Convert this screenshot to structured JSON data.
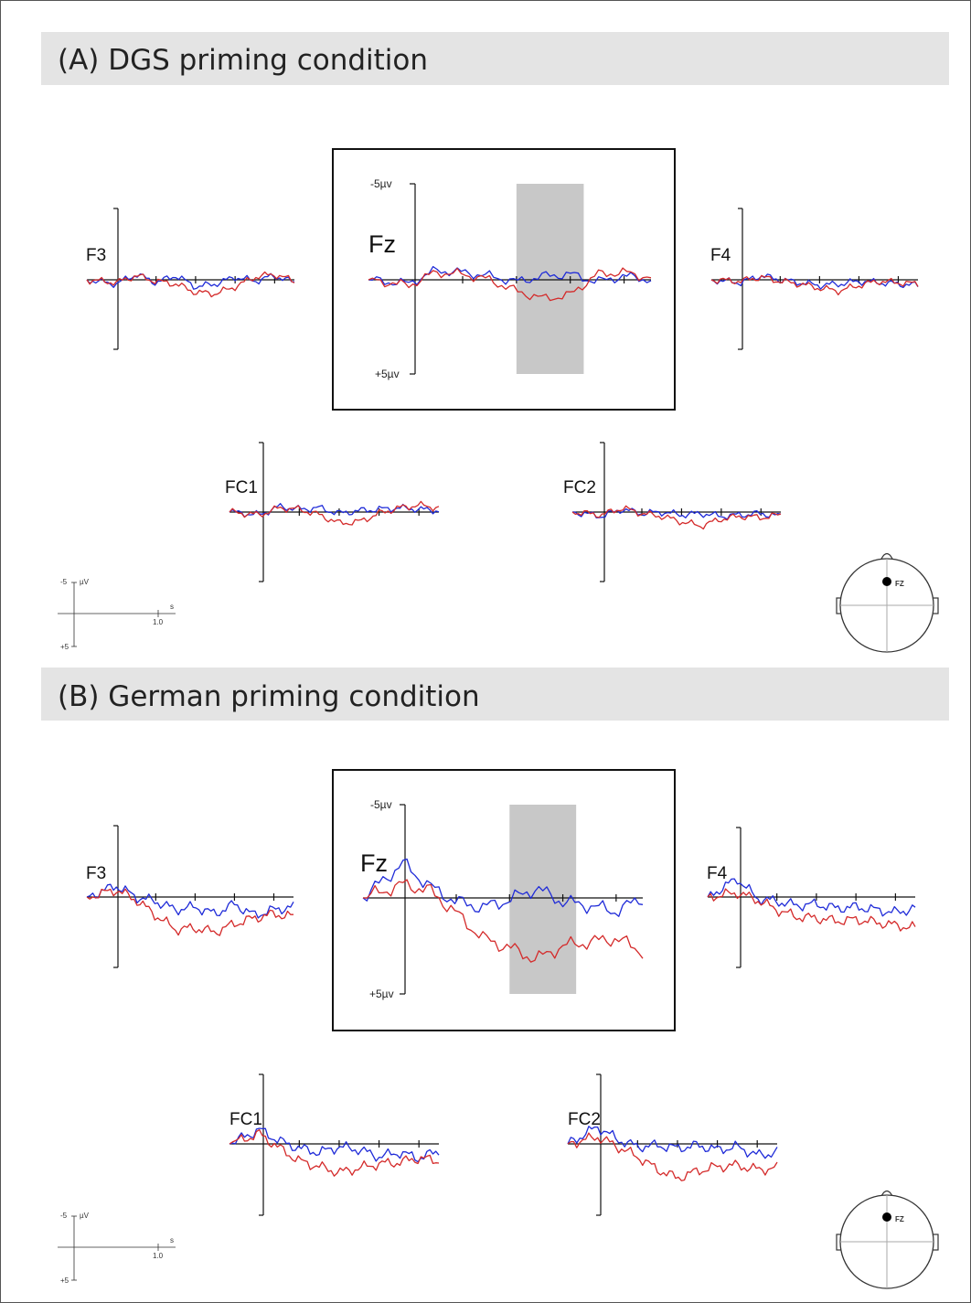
{
  "colors": {
    "condition_1": "#1f2bd8",
    "condition_2": "#d42a2a",
    "title_bar": "#e4e4e4",
    "window": "#c8c8c8"
  },
  "chart_data": [
    {
      "type": "line",
      "panel": "A",
      "title": "(A) DGS priming condition",
      "y_axis": {
        "top": "-5µv",
        "bottom": "+5µv",
        "negative_up": true
      },
      "scale_legend": {
        "top": "-5",
        "unit": "µV",
        "bottom": "+5",
        "x_unit": "s",
        "x_tick": "1.0"
      },
      "head_map_label": "FZ",
      "highlight_window_s": [
        0.4,
        0.65
      ],
      "channels": [
        {
          "name": "F3",
          "series": [
            {
              "color_key": "condition_1",
              "t": [
                -0.15,
                0,
                0.1,
                0.2,
                0.3,
                0.4,
                0.5,
                0.6,
                0.7,
                0.8,
                0.9
              ],
              "uv": [
                0,
                0.3,
                -0.4,
                0.2,
                -0.3,
                0.5,
                0.3,
                -0.2,
                0.1,
                -0.3,
                0.2
              ]
            },
            {
              "color_key": "condition_2",
              "t": [
                -0.15,
                0,
                0.1,
                0.2,
                0.3,
                0.4,
                0.5,
                0.6,
                0.7,
                0.8,
                0.9
              ],
              "uv": [
                0,
                0.2,
                -0.3,
                0.1,
                0.3,
                0.9,
                1.0,
                0.5,
                -0.2,
                -0.4,
                0.1
              ]
            }
          ]
        },
        {
          "name": "Fz",
          "series": [
            {
              "color_key": "condition_1",
              "t": [
                -0.15,
                0,
                0.1,
                0.2,
                0.3,
                0.4,
                0.5,
                0.6,
                0.7,
                0.8,
                0.9
              ],
              "uv": [
                0,
                0.2,
                -0.5,
                -0.4,
                -0.2,
                0.1,
                -0.2,
                -0.3,
                0.1,
                -0.2,
                0.0
              ]
            },
            {
              "color_key": "condition_2",
              "t": [
                -0.15,
                0,
                0.1,
                0.2,
                0.3,
                0.4,
                0.5,
                0.6,
                0.7,
                0.8,
                0.9
              ],
              "uv": [
                0,
                0.3,
                -0.4,
                -0.3,
                0.0,
                0.6,
                1.0,
                0.8,
                -0.3,
                -0.4,
                -0.1
              ]
            }
          ]
        },
        {
          "name": "F4",
          "series": [
            {
              "color_key": "condition_1",
              "t": [
                -0.15,
                0,
                0.1,
                0.2,
                0.3,
                0.4,
                0.5,
                0.6,
                0.7,
                0.8,
                0.9
              ],
              "uv": [
                0,
                0.2,
                -0.3,
                0.0,
                0.2,
                0.4,
                0.3,
                0.1,
                0.2,
                0.3,
                0.4
              ]
            },
            {
              "color_key": "condition_2",
              "t": [
                -0.15,
                0,
                0.1,
                0.2,
                0.3,
                0.4,
                0.5,
                0.6,
                0.7,
                0.8,
                0.9
              ],
              "uv": [
                0,
                0.1,
                -0.2,
                0.1,
                0.3,
                0.6,
                0.8,
                0.4,
                0.1,
                0.2,
                0.3
              ]
            }
          ]
        },
        {
          "name": "FC1",
          "series": [
            {
              "color_key": "condition_1",
              "t": [
                -0.15,
                0,
                0.1,
                0.2,
                0.3,
                0.4,
                0.5,
                0.6,
                0.7,
                0.8,
                0.9
              ],
              "uv": [
                0,
                0.2,
                -0.4,
                -0.2,
                -0.3,
                0.1,
                -0.1,
                -0.2,
                -0.3,
                -0.2,
                -0.1
              ]
            },
            {
              "color_key": "condition_2",
              "t": [
                -0.15,
                0,
                0.1,
                0.2,
                0.3,
                0.4,
                0.5,
                0.6,
                0.7,
                0.8,
                0.9
              ],
              "uv": [
                0,
                0.2,
                -0.3,
                -0.2,
                0.2,
                0.8,
                0.7,
                0.1,
                -0.3,
                -0.5,
                -0.3
              ]
            }
          ]
        },
        {
          "name": "FC2",
          "series": [
            {
              "color_key": "condition_1",
              "t": [
                -0.15,
                0,
                0.1,
                0.2,
                0.3,
                0.4,
                0.5,
                0.6,
                0.7,
                0.8,
                0.9
              ],
              "uv": [
                0,
                0.3,
                -0.2,
                0.1,
                0.0,
                0.2,
                0.1,
                0.3,
                0.2,
                0.1,
                0.3
              ]
            },
            {
              "color_key": "condition_2",
              "t": [
                -0.15,
                0,
                0.1,
                0.2,
                0.3,
                0.4,
                0.5,
                0.6,
                0.7,
                0.8,
                0.9
              ],
              "uv": [
                0,
                0.2,
                -0.3,
                0.1,
                0.3,
                0.7,
                1.0,
                0.5,
                0.3,
                0.4,
                0.2
              ]
            }
          ]
        }
      ]
    },
    {
      "type": "line",
      "panel": "B",
      "title": "(B) German priming condition",
      "y_axis": {
        "top": "-5µv",
        "bottom": "+5µv",
        "negative_up": true
      },
      "scale_legend": {
        "top": "-5",
        "unit": "µV",
        "bottom": "+5",
        "x_unit": "s",
        "x_tick": "1.0"
      },
      "head_map_label": "FZ",
      "highlight_window_s": [
        0.4,
        0.65
      ],
      "channels": [
        {
          "name": "F3",
          "series": [
            {
              "color_key": "condition_1",
              "t": [
                -0.15,
                0,
                0.1,
                0.2,
                0.3,
                0.4,
                0.5,
                0.6,
                0.7,
                0.8,
                0.9
              ],
              "uv": [
                0,
                -0.8,
                0.0,
                0.3,
                0.9,
                0.7,
                1.2,
                0.5,
                1.3,
                0.9,
                0.7
              ]
            },
            {
              "color_key": "condition_2",
              "t": [
                -0.15,
                0,
                0.1,
                0.2,
                0.3,
                0.4,
                0.5,
                0.6,
                0.7,
                0.8,
                0.9
              ],
              "uv": [
                0,
                -0.5,
                0.2,
                1.3,
                2.3,
                2.2,
                2.5,
                1.9,
                1.5,
                1.2,
                1.4
              ]
            }
          ]
        },
        {
          "name": "Fz",
          "series": [
            {
              "color_key": "condition_1",
              "t": [
                -0.15,
                0,
                0.1,
                0.2,
                0.3,
                0.4,
                0.5,
                0.6,
                0.7,
                0.8,
                0.9
              ],
              "uv": [
                0,
                -1.8,
                -0.6,
                0.2,
                0.5,
                0.1,
                -0.5,
                0.2,
                0.4,
                0.7,
                0.0
              ]
            },
            {
              "color_key": "condition_2",
              "t": [
                -0.15,
                0,
                0.1,
                0.2,
                0.3,
                0.4,
                0.5,
                0.6,
                0.7,
                0.8,
                0.9
              ],
              "uv": [
                0,
                -0.7,
                -0.4,
                0.8,
                2.1,
                2.6,
                3.2,
                2.5,
                2.3,
                2.1,
                2.8
              ]
            }
          ]
        },
        {
          "name": "F4",
          "series": [
            {
              "color_key": "condition_1",
              "t": [
                -0.15,
                0,
                0.1,
                0.2,
                0.3,
                0.4,
                0.5,
                0.6,
                0.7,
                0.8,
                0.9
              ],
              "uv": [
                0,
                -1.3,
                0.1,
                0.3,
                0.6,
                0.5,
                0.8,
                0.7,
                0.9,
                1.1,
                0.8
              ]
            },
            {
              "color_key": "condition_2",
              "t": [
                -0.15,
                0,
                0.1,
                0.2,
                0.3,
                0.4,
                0.5,
                0.6,
                0.7,
                0.8,
                0.9
              ],
              "uv": [
                0,
                -0.3,
                0.2,
                0.9,
                1.4,
                1.5,
                1.7,
                1.6,
                1.8,
                2.0,
                2.2
              ]
            }
          ]
        },
        {
          "name": "FC1",
          "series": [
            {
              "color_key": "condition_1",
              "t": [
                -0.15,
                0,
                0.1,
                0.2,
                0.3,
                0.4,
                0.5,
                0.6,
                0.7,
                0.8,
                0.9
              ],
              "uv": [
                0,
                -1.0,
                -0.2,
                0.3,
                0.6,
                0.2,
                0.4,
                0.9,
                0.6,
                1.0,
                0.5
              ]
            },
            {
              "color_key": "condition_2",
              "t": [
                -0.15,
                0,
                0.1,
                0.2,
                0.3,
                0.4,
                0.5,
                0.6,
                0.7,
                0.8,
                0.9
              ],
              "uv": [
                0,
                -0.7,
                0.3,
                1.2,
                1.6,
                2.0,
                1.7,
                1.4,
                1.3,
                1.0,
                1.2
              ]
            }
          ]
        },
        {
          "name": "FC2",
          "series": [
            {
              "color_key": "condition_1",
              "t": [
                -0.15,
                0,
                0.1,
                0.2,
                0.3,
                0.4,
                0.5,
                0.6,
                0.7,
                0.8,
                0.9
              ],
              "uv": [
                0,
                -1.2,
                -0.3,
                0.2,
                0.1,
                0.3,
                0.1,
                0.4,
                0.2,
                0.8,
                0.6
              ]
            },
            {
              "color_key": "condition_2",
              "t": [
                -0.15,
                0,
                0.1,
                0.2,
                0.3,
                0.4,
                0.5,
                0.6,
                0.7,
                0.8,
                0.9
              ],
              "uv": [
                0,
                -0.5,
                0.2,
                0.9,
                1.8,
                2.4,
                1.9,
                1.6,
                1.5,
                1.8,
                1.7
              ]
            }
          ]
        }
      ]
    }
  ]
}
